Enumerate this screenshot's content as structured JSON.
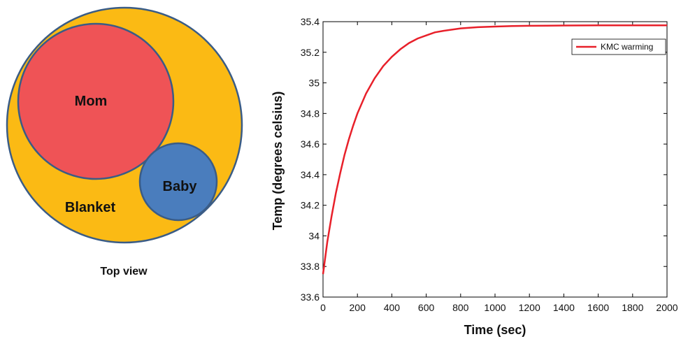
{
  "diagram": {
    "outer_label": "Blanket",
    "mom_label": "Mom",
    "baby_label": "Baby",
    "caption": "Top view",
    "colors": {
      "blanket": "#FBBA14",
      "mom": "#EF5356",
      "baby": "#4A7DBD",
      "outline": "#3A5C86"
    }
  },
  "chart_data": {
    "type": "line",
    "xlabel": "Time (sec)",
    "ylabel": "Temp (degrees celsius)",
    "xlim": [
      0,
      2000
    ],
    "ylim": [
      33.6,
      35.4
    ],
    "xticks": [
      "0",
      "200",
      "400",
      "600",
      "800",
      "1000",
      "1200",
      "1400",
      "1600",
      "1800",
      "2000"
    ],
    "yticks": [
      "33.6",
      "33.8",
      "34",
      "34.2",
      "34.4",
      "34.6",
      "34.8",
      "35",
      "35.2",
      "35.4"
    ],
    "legend": "top-right",
    "grid": false,
    "series": [
      {
        "name": "KMC warming",
        "color": "#E8202A",
        "x": [
          0,
          25,
          50,
          75,
          100,
          125,
          150,
          175,
          200,
          250,
          300,
          350,
          400,
          450,
          500,
          550,
          600,
          650,
          700,
          800,
          900,
          1000,
          1100,
          1200,
          1300,
          1400,
          1600,
          1800,
          2000
        ],
        "y": [
          33.75,
          33.96,
          34.13,
          34.28,
          34.41,
          34.53,
          34.63,
          34.72,
          34.8,
          34.93,
          35.03,
          35.11,
          35.17,
          35.22,
          35.26,
          35.29,
          35.31,
          35.33,
          35.34,
          35.356,
          35.364,
          35.368,
          35.371,
          35.373,
          35.374,
          35.375,
          35.376,
          35.376,
          35.376
        ]
      }
    ]
  }
}
